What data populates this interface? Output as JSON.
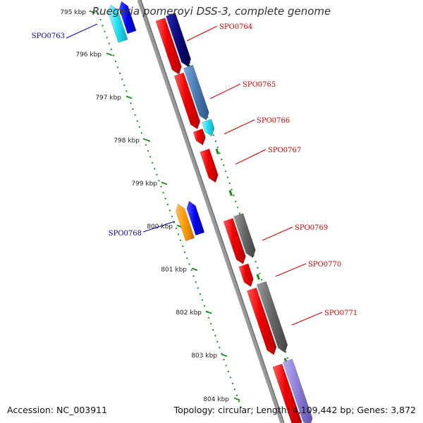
{
  "title": "Ruegeria pomeroyi DSS-3, complete genome",
  "footer": {
    "accession_label": "Accession:",
    "accession": "NC_003911",
    "topology_label": "Topology:",
    "topology": "circular",
    "length_label": "Length:",
    "length": "4,109,442 bp",
    "genes_label": "Genes:",
    "genes": "3,872"
  },
  "scale": {
    "unit": "kbp",
    "ticks": [
      "795 kbp",
      "796 kbp",
      "797 kbp",
      "798 kbp",
      "799 kbp",
      "800 kbp",
      "801 kbp",
      "802 kbp",
      "803 kbp",
      "804 kbp"
    ],
    "tick_values_kbp": [
      795,
      796,
      797,
      798,
      799,
      800,
      801,
      802,
      803,
      804
    ]
  },
  "colors": {
    "backbone": "#999999",
    "tick_dots": "#1e8c1e",
    "label_forward": "#cc0000",
    "label_reverse": "#0000aa",
    "red": "#ee0000",
    "navy": "#0a0a78",
    "steelblue": "#4a7ab4",
    "cyan": "#20dcf0",
    "orange": "#ff9900",
    "blue": "#0000ee",
    "gray": "#666666",
    "lavender": "#8a7ed8"
  },
  "labels": [
    {
      "id": "SPO0763",
      "text": "SPO0763",
      "strand": "reverse"
    },
    {
      "id": "SPO0764",
      "text": "SPO0764",
      "strand": "forward"
    },
    {
      "id": "SPO0765",
      "text": "SPO0765",
      "strand": "forward"
    },
    {
      "id": "SPO0766",
      "text": "SPO0766",
      "strand": "forward"
    },
    {
      "id": "SPO0767",
      "text": "SPO0767",
      "strand": "forward"
    },
    {
      "id": "SPO0768",
      "text": "SPO0768",
      "strand": "reverse"
    },
    {
      "id": "SPO0769",
      "text": "SPO0769",
      "strand": "forward"
    },
    {
      "id": "SPO0770",
      "text": "SPO0770",
      "strand": "forward"
    },
    {
      "id": "SPO0771",
      "text": "SPO0771",
      "strand": "forward"
    }
  ],
  "features": [
    {
      "id": "rev-cyan-top",
      "track": "reverse-outer",
      "strand": "reverse",
      "color": "cyan"
    },
    {
      "id": "rev-blue-top",
      "track": "reverse-inner",
      "strand": "reverse",
      "color": "blue"
    },
    {
      "id": "SPO0764",
      "track": "forward-inner",
      "strand": "forward",
      "color": "red"
    },
    {
      "id": "SPO0764-product",
      "track": "forward-outer",
      "strand": "forward",
      "color": "navy"
    },
    {
      "id": "SPO0765",
      "track": "forward-inner",
      "strand": "forward",
      "color": "red"
    },
    {
      "id": "SPO0765-product",
      "track": "forward-outer",
      "strand": "forward",
      "color": "steelblue"
    },
    {
      "id": "SPO0766",
      "track": "forward-inner",
      "strand": "forward",
      "color": "red"
    },
    {
      "id": "SPO0766-product",
      "track": "forward-outer",
      "strand": "forward",
      "color": "cyan"
    },
    {
      "id": "SPO0767",
      "track": "forward-inner",
      "strand": "forward",
      "color": "red"
    },
    {
      "id": "SPO0768",
      "track": "reverse-inner",
      "strand": "reverse",
      "color": "blue"
    },
    {
      "id": "SPO0768-product",
      "track": "reverse-outer",
      "strand": "reverse",
      "color": "orange"
    },
    {
      "id": "SPO0769",
      "track": "forward-inner",
      "strand": "forward",
      "color": "red"
    },
    {
      "id": "SPO0769-product",
      "track": "forward-outer",
      "strand": "forward",
      "color": "gray"
    },
    {
      "id": "SPO0770",
      "track": "forward-inner",
      "strand": "forward",
      "color": "red"
    },
    {
      "id": "SPO0771",
      "track": "forward-inner",
      "strand": "forward",
      "color": "red"
    },
    {
      "id": "SPO0771-product",
      "track": "forward-outer",
      "strand": "forward",
      "color": "gray"
    },
    {
      "id": "fwd-red-bottom",
      "track": "forward-inner",
      "strand": "forward",
      "color": "red"
    },
    {
      "id": "fwd-lavender-bottom",
      "track": "forward-outer",
      "strand": "forward",
      "color": "lavender"
    }
  ]
}
